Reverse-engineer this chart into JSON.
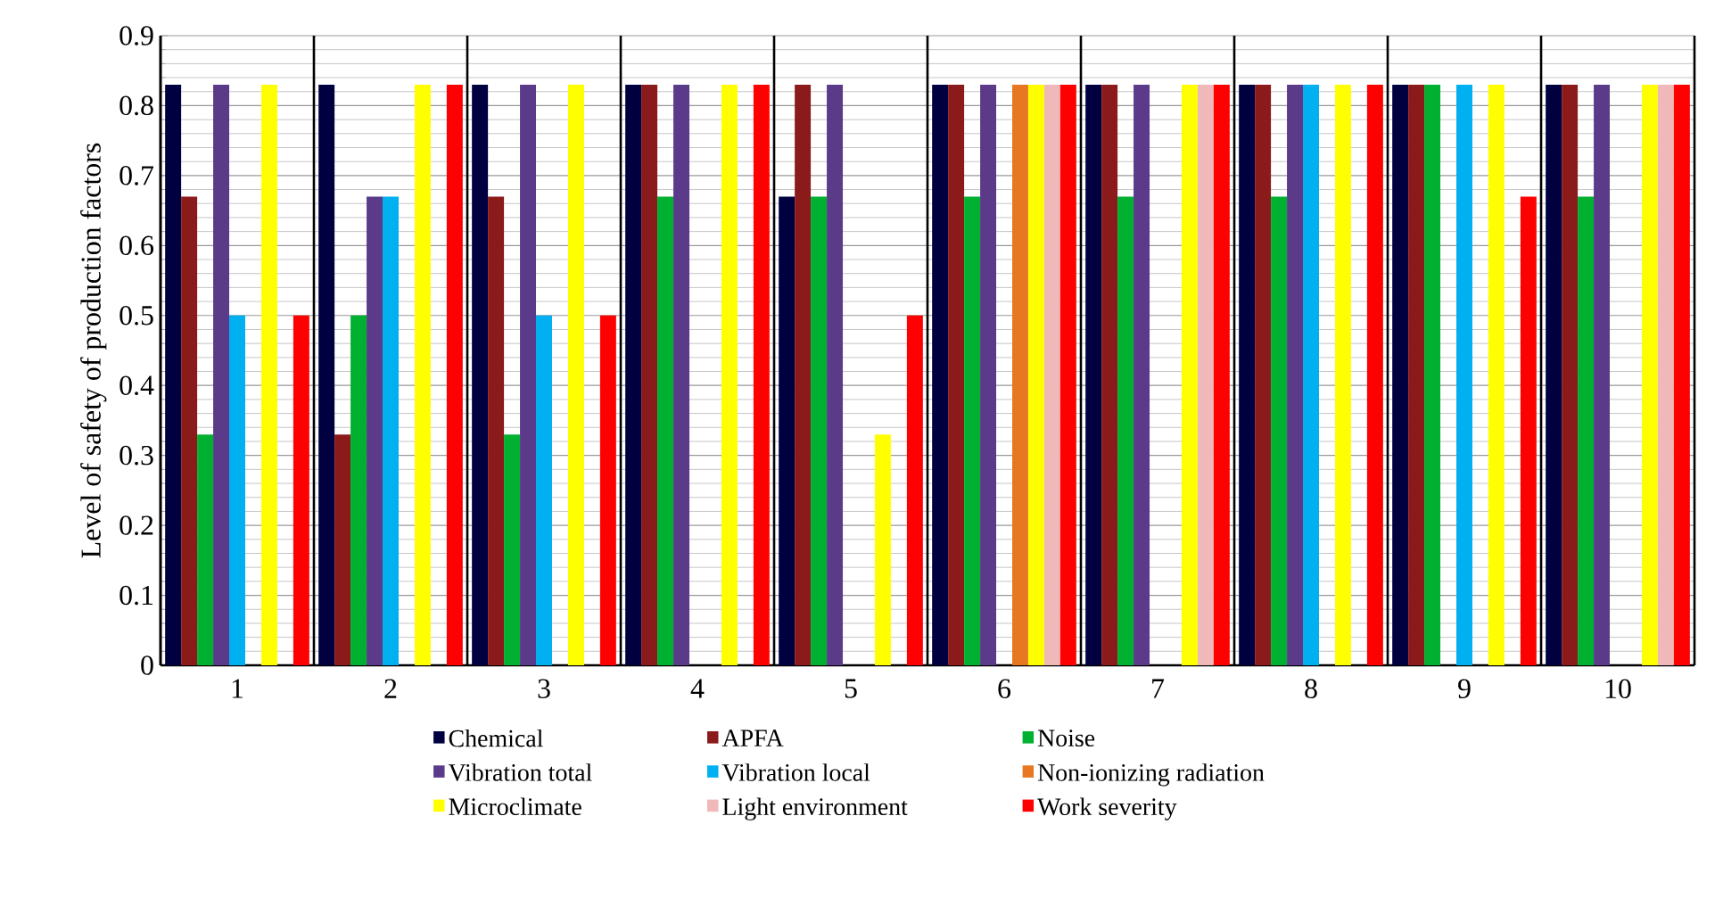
{
  "chart_data": {
    "type": "bar",
    "ylabel": "Level of safety of production factors",
    "categories": [
      "1",
      "2",
      "3",
      "4",
      "5",
      "6",
      "7",
      "8",
      "9",
      "10"
    ],
    "series": [
      {
        "name": "Chemical",
        "color": "#000040",
        "values": [
          0.83,
          0.83,
          0.83,
          0.83,
          0.67,
          0.83,
          0.83,
          0.83,
          0.83,
          0.83
        ]
      },
      {
        "name": "APFA",
        "color": "#8b1a1a",
        "values": [
          0.67,
          0.33,
          0.67,
          0.83,
          0.83,
          0.83,
          0.83,
          0.83,
          0.83,
          0.83
        ]
      },
      {
        "name": "Noise",
        "color": "#00b030",
        "values": [
          0.33,
          0.5,
          0.33,
          0.67,
          0.67,
          0.67,
          0.67,
          0.67,
          0.83,
          0.67
        ]
      },
      {
        "name": "Vibration total",
        "color": "#5b3a8a",
        "values": [
          0.83,
          0.67,
          0.83,
          0.83,
          0.83,
          0.83,
          0.83,
          0.83,
          null,
          0.83
        ]
      },
      {
        "name": "Vibration local",
        "color": "#00b0f0",
        "values": [
          0.5,
          0.67,
          0.5,
          null,
          null,
          null,
          null,
          0.83,
          0.83,
          null
        ]
      },
      {
        "name": "Non-ionizing radiation",
        "color": "#e87722",
        "values": [
          null,
          null,
          null,
          null,
          null,
          0.83,
          null,
          null,
          null,
          null
        ]
      },
      {
        "name": "Microclimate",
        "color": "#ffff00",
        "values": [
          0.83,
          0.83,
          0.83,
          0.83,
          0.33,
          0.83,
          0.83,
          0.83,
          0.83,
          0.83
        ]
      },
      {
        "name": "Light environment",
        "color": "#f0b8b8",
        "values": [
          null,
          null,
          null,
          null,
          null,
          0.83,
          0.83,
          null,
          null,
          0.83
        ]
      },
      {
        "name": "Work severity",
        "color": "#ff0000",
        "values": [
          0.5,
          0.83,
          0.5,
          0.83,
          0.5,
          0.83,
          0.83,
          0.83,
          0.67,
          0.83
        ]
      }
    ],
    "ylim": [
      0,
      0.9
    ],
    "yticks": [
      0,
      0.1,
      0.2,
      0.3,
      0.4,
      0.5,
      0.6,
      0.7,
      0.8,
      0.9
    ],
    "grid": true,
    "legend": "bottom"
  }
}
